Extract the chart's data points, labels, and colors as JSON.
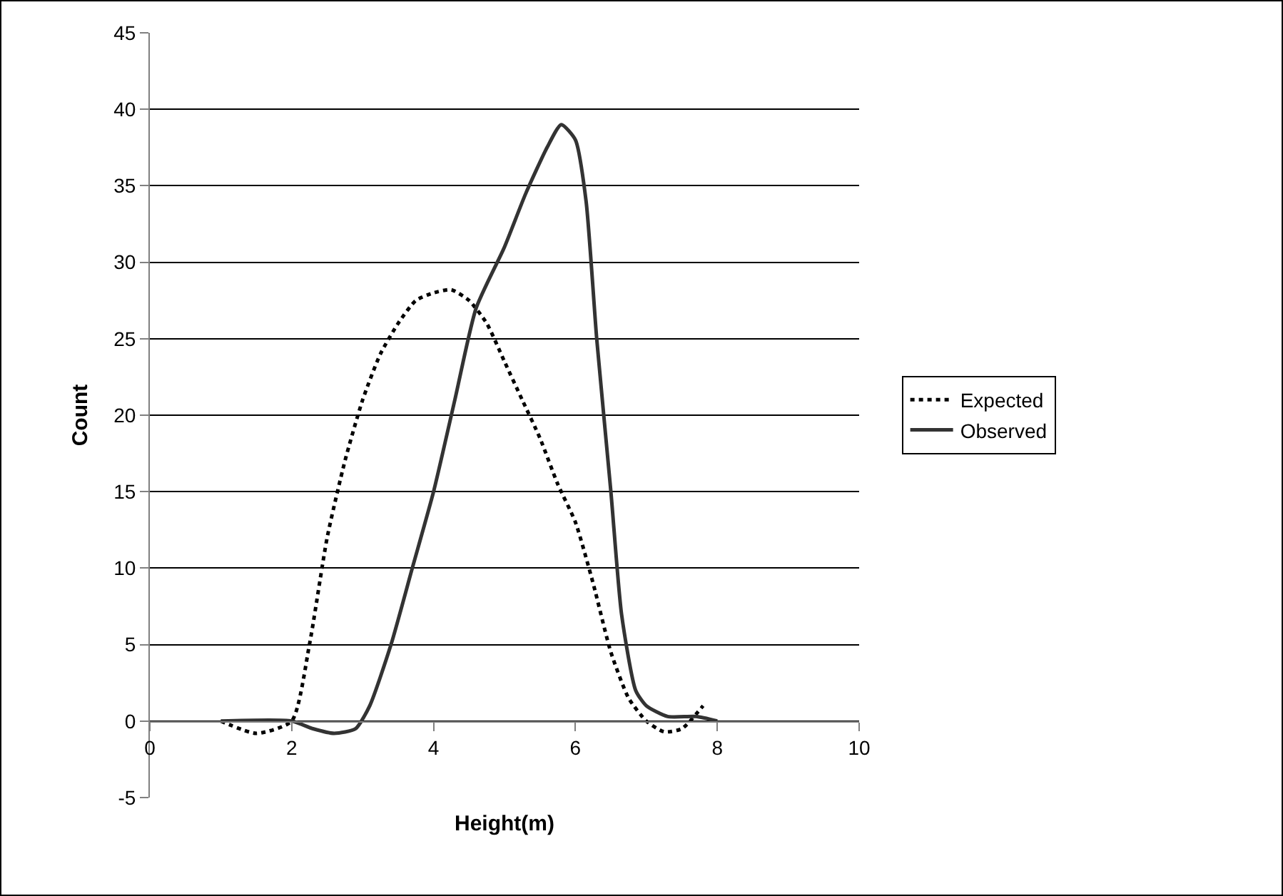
{
  "chart_data": {
    "type": "line",
    "xlabel": "Height(m)",
    "ylabel": "Count",
    "xlim": [
      0,
      10
    ],
    "xticks": [
      0,
      2,
      4,
      6,
      8,
      10
    ],
    "ylim": [
      -5,
      45
    ],
    "yticks": [
      -5,
      0,
      5,
      10,
      15,
      20,
      25,
      30,
      35,
      40,
      45
    ],
    "grid": "y",
    "legend": "right",
    "marker": "none",
    "series": [
      {
        "name": "Expected",
        "color": "#000000",
        "line_style": "dotted",
        "x": [
          1,
          1.5,
          2,
          2.25,
          2.5,
          2.75,
          3,
          3.25,
          3.5,
          3.75,
          4,
          4.25,
          4.5,
          4.75,
          5,
          5.25,
          5.5,
          5.75,
          6,
          6.25,
          6.5,
          6.75,
          7,
          7.25,
          7.5,
          7.8
        ],
        "values": [
          0,
          -0.8,
          0,
          5,
          12,
          17,
          21,
          24,
          26,
          27.5,
          28,
          28.2,
          27.5,
          26,
          23.5,
          21,
          18.5,
          15.5,
          13,
          9,
          4.5,
          1.5,
          0,
          -0.7,
          -0.5,
          1
        ]
      },
      {
        "name": "Observed",
        "color": "#333333",
        "line_style": "solid",
        "x": [
          1,
          2,
          2.3,
          2.6,
          2.9,
          3.1,
          3.4,
          3.7,
          4,
          4.3,
          4.6,
          5,
          5.3,
          5.6,
          5.8,
          6,
          6.15,
          6.3,
          6.5,
          6.65,
          6.85,
          7,
          7.3,
          7.7,
          8
        ],
        "values": [
          0,
          0,
          -0.5,
          -0.8,
          -0.5,
          1,
          5,
          10,
          15,
          21,
          27,
          31,
          34.5,
          37.5,
          39,
          38,
          34,
          25,
          15,
          7,
          2,
          1,
          0.3,
          0.3,
          0
        ]
      }
    ]
  }
}
